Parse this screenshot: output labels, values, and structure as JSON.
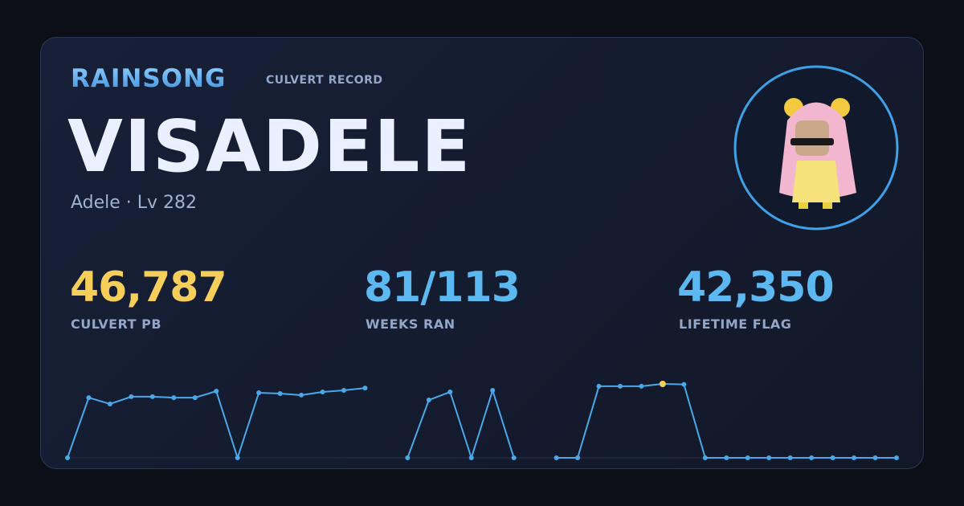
{
  "header": {
    "brand": "RAINSONG",
    "tag": "CULVERT RECORD"
  },
  "player": {
    "name": "VISADELE",
    "info": "Adele · Lv 282"
  },
  "stats": [
    {
      "value": "46,787",
      "label": "CULVERT PB"
    },
    {
      "value": "81/113",
      "label": "WEEKS RAN"
    },
    {
      "value": "42,350",
      "label": "LIFETIME FLAG"
    }
  ],
  "chart_data": {
    "type": "line",
    "values": [
      0,
      38100,
      34100,
      38700,
      38700,
      38100,
      38100,
      42200,
      0,
      41200,
      40700,
      39700,
      41700,
      42700,
      44200,
      null,
      0,
      36600,
      41700,
      0,
      42700,
      0,
      null,
      0,
      0,
      45300,
      45300,
      45300,
      46787,
      46500,
      0,
      0,
      0,
      0,
      0,
      0,
      0,
      0,
      0,
      0
    ],
    "color": "#4aa8e8",
    "highlight_color": "#f5cf5a",
    "ylim": [
      0,
      46787
    ]
  }
}
